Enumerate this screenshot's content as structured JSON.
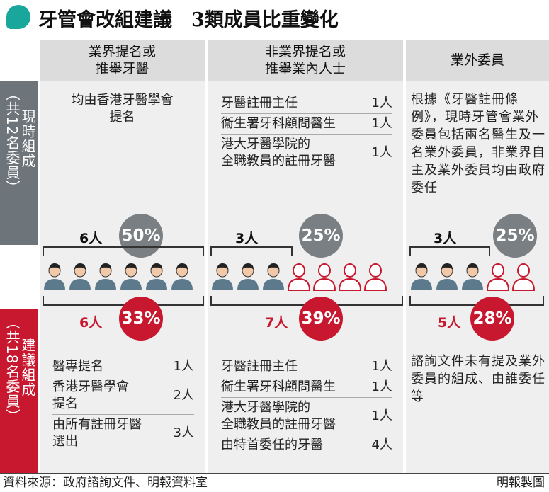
{
  "title": "牙管會改組建議　3類成員比重變化",
  "columns": [
    {
      "label": "業界提名或\n推舉牙醫"
    },
    {
      "label": "非業界提名或\n推舉業內人士"
    },
    {
      "label": "業外委員"
    }
  ],
  "side": {
    "current": "現時組成\n（共12名委員）",
    "current_a": "現時組成",
    "current_b": "（共12名委員）",
    "proposed_a": "建議組成",
    "proposed_b": "（共18名委員）"
  },
  "current": {
    "industry_text": "均由香港牙醫學會\n提名",
    "nonindustry_roles": [
      {
        "name": "牙醫註冊主任",
        "count": "1人"
      },
      {
        "name": "衞生署牙科顧問醫生",
        "count": "1人"
      },
      {
        "name": "港大牙醫學院的\n全職教員的註冊牙醫",
        "count": "1人"
      }
    ],
    "lay_text": "根據《牙醫註冊條例》，現時牙管會業外委員包括兩名醫生及一名業外委員，非業界自主及業外委員均由政府委任",
    "counts": [
      "6人",
      "3人",
      "3人"
    ],
    "percents": [
      "50%",
      "25%",
      "25%"
    ],
    "share_values": [
      50,
      25,
      25
    ]
  },
  "proposed": {
    "industry_roles": [
      {
        "name": "醫專提名",
        "count": "1人"
      },
      {
        "name": "香港牙醫學會\n提名",
        "count": "2人"
      },
      {
        "name": "由所有註冊牙醫\n選出",
        "count": "3人"
      }
    ],
    "nonindustry_roles": [
      {
        "name": "牙醫註冊主任",
        "count": "1人"
      },
      {
        "name": "衞生署牙科顧問醫生",
        "count": "1人"
      },
      {
        "name": "港大牙醫學院的\n全職教員的註冊牙醫",
        "count": "1人"
      },
      {
        "name": "由特首委任的牙醫",
        "count": "4人"
      }
    ],
    "lay_text": "諮詢文件未有提及業外委員的組成、由誰委任等",
    "counts": [
      "6人",
      "7人",
      "5人"
    ],
    "percents": [
      "33%",
      "39%",
      "28%"
    ],
    "share_values": [
      33,
      39,
      28
    ]
  },
  "footer": {
    "source": "資料來源：政府諮詢文件、明報資料室",
    "credit": "明報製圖"
  },
  "colors": {
    "accent": "#1aa79b",
    "current": "#6e757a",
    "proposed": "#c7182f",
    "person_filled": "#5c7a8c"
  },
  "icons": {
    "person_filled": "person-icon",
    "person_outline": "person-outline-icon"
  }
}
